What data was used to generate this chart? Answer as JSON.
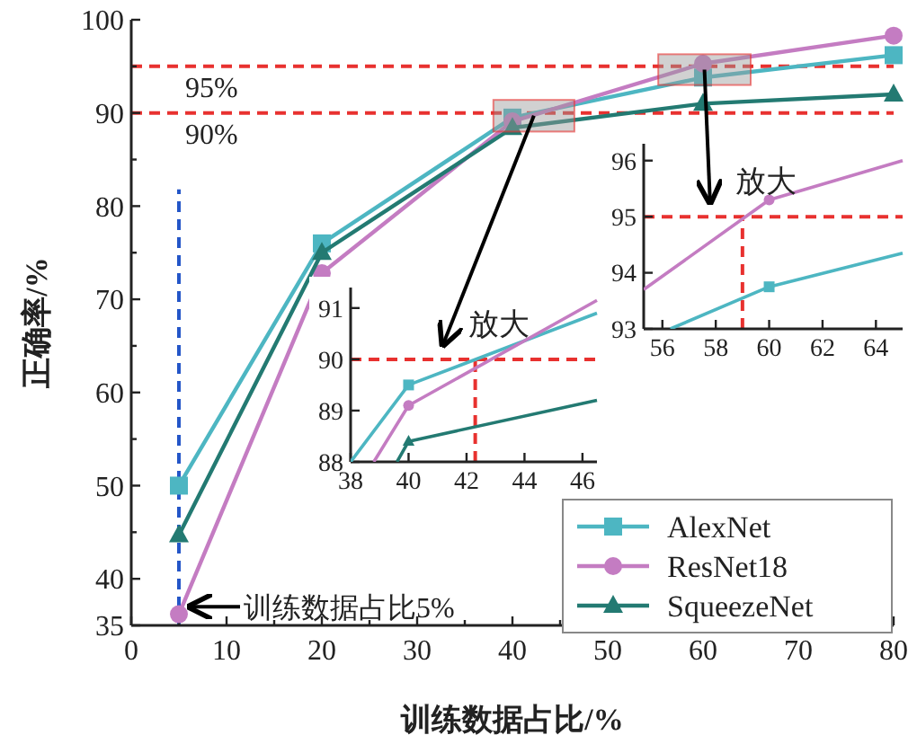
{
  "chart_data": [
    {
      "type": "line",
      "xlabel": "训练数据占比/%",
      "ylabel": "正确率/%",
      "x": [
        5,
        20,
        40,
        60,
        80
      ],
      "xlim": [
        0,
        80
      ],
      "xticks": [
        0,
        {
          "value": 5,
          "label": null
        },
        10,
        {
          "value": 15,
          "label": null
        },
        20,
        {
          "value": 25,
          "label": null
        },
        30,
        {
          "value": 35,
          "label": null
        },
        40,
        {
          "value": 45,
          "label": null
        },
        50,
        {
          "value": 55,
          "label": null
        },
        60,
        {
          "value": 65,
          "label": null
        },
        70,
        {
          "value": 75,
          "label": null
        },
        80
      ],
      "ylim": [
        35,
        100
      ],
      "yticks": [
        35,
        40,
        {
          "value": 45,
          "label": null
        },
        50,
        {
          "value": 55,
          "label": null
        },
        60,
        {
          "value": 65,
          "label": null
        },
        70,
        {
          "value": 75,
          "label": null
        },
        80,
        {
          "value": 85,
          "label": null
        },
        90,
        {
          "value": 95,
          "label": null
        },
        100
      ],
      "legend": "bottom right",
      "grid": false,
      "series": [
        {
          "name": "AlexNet",
          "color": "#4db6c2",
          "marker": "square",
          "values": [
            50,
            76,
            89.5,
            93.8,
            96.2
          ]
        },
        {
          "name": "ResNet18",
          "color": "#c47cc2",
          "marker": "circle",
          "values": [
            36.2,
            72.8,
            89.1,
            95.3,
            98.3
          ]
        },
        {
          "name": "SqueezeNet",
          "color": "#237a72",
          "marker": "triangle",
          "values": [
            44.7,
            75,
            88.4,
            91,
            92
          ]
        }
      ],
      "ref_lines": [
        {
          "axis": "y",
          "value": 95,
          "label": "95%",
          "color": "#e8312f",
          "line_style": "dashed"
        },
        {
          "axis": "y",
          "value": 90,
          "label": "90%",
          "color": "#e8312f",
          "line_style": "dashed"
        },
        {
          "axis": "x",
          "value": 5,
          "label": null,
          "color": "#2456c8",
          "line_style": "dashed"
        }
      ],
      "annotations": [
        {
          "text": "训练数据占比5%",
          "x": 5,
          "y": 37
        }
      ]
    },
    {
      "type": "line",
      "xlim": [
        38,
        46.5
      ],
      "xticks": [
        38,
        40,
        42,
        44,
        46
      ],
      "ylim": [
        88,
        91.4
      ],
      "yticks": [
        88,
        89,
        90,
        91
      ],
      "series": [
        {
          "color": "#4db6c2",
          "marker": "none",
          "x": [
            38,
            40,
            46.5
          ],
          "values": [
            88,
            89.5,
            90.9
          ]
        },
        {
          "color": "#c47cc2",
          "marker": "none",
          "x": [
            38.8,
            40,
            46.5
          ],
          "values": [
            88,
            89.1,
            91.15
          ]
        },
        {
          "color": "#237a72",
          "marker": "none",
          "x": [
            39.6,
            40,
            46.5
          ],
          "values": [
            88,
            88.4,
            89.2
          ]
        },
        {
          "type": "scatter",
          "color": "#4db6c2",
          "marker": "square",
          "x": [
            40
          ],
          "values": [
            89.5
          ]
        },
        {
          "type": "scatter",
          "color": "#c47cc2",
          "marker": "circle",
          "x": [
            40
          ],
          "values": [
            89.1
          ]
        },
        {
          "type": "scatter",
          "color": "#237a72",
          "marker": "triangle",
          "x": [
            40
          ],
          "values": [
            88.4
          ]
        }
      ],
      "ref_lines": [
        {
          "axis": "y",
          "value": 90,
          "color": "#e8312f",
          "line_style": "dashed"
        },
        {
          "axis": "x",
          "value": 42.3,
          "color": "#e8312f",
          "line_style": "dashed"
        }
      ],
      "annotations": [
        "放大"
      ]
    },
    {
      "type": "line",
      "xlim": [
        55.3,
        65
      ],
      "xticks": [
        56,
        58,
        60,
        62,
        64
      ],
      "ylim": [
        93,
        96.3
      ],
      "yticks": [
        93,
        94,
        95,
        96
      ],
      "series": [
        {
          "color": "#4db6c2",
          "marker": "none",
          "x": [
            56.3,
            60,
            65
          ],
          "values": [
            93,
            93.75,
            94.35
          ]
        },
        {
          "color": "#c47cc2",
          "marker": "none",
          "x": [
            55.3,
            60,
            65
          ],
          "values": [
            93.7,
            95.3,
            96
          ]
        },
        {
          "type": "scatter",
          "color": "#4db6c2",
          "marker": "square",
          "x": [
            60
          ],
          "values": [
            93.75
          ]
        },
        {
          "type": "scatter",
          "color": "#c47cc2",
          "marker": "circle",
          "x": [
            60
          ],
          "values": [
            95.3
          ]
        }
      ],
      "ref_lines": [
        {
          "axis": "y",
          "value": 95,
          "color": "#e8312f",
          "line_style": "dashed"
        },
        {
          "axis": "x",
          "value": 59,
          "color": "#e8312f",
          "line_style": "dashed"
        }
      ],
      "annotations": [
        "放大"
      ]
    }
  ]
}
